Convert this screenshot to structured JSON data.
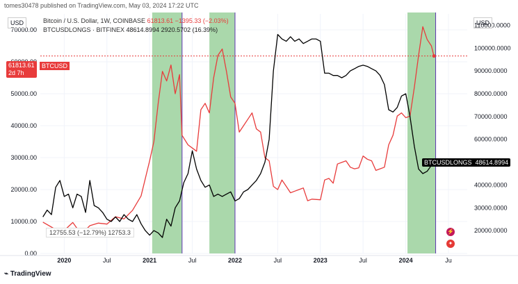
{
  "header": {
    "author_line": "tomes30478 published on TradingView.com, May 03, 2024 17:22 UTC"
  },
  "legend": {
    "btc": {
      "name": "Bitcoin / U.S. Dollar, 1W, COINBASE",
      "value": "61813.61",
      "change": "−1395.33 (−2.03%)"
    },
    "longs": {
      "name": "BTCUSDLONGS · BITFINEX",
      "value": "48614.8994",
      "change": "2920.5702 (16.39%)"
    }
  },
  "badges": {
    "price": "61813.61",
    "countdown": "2d 7h",
    "btc_tag": "BTCUSD",
    "longs_label": "BTCUSDLONGS",
    "longs_value": "48614.8994",
    "ohlc": "12755.53 (−12.79%) 12753.3",
    "currency_left": "USD",
    "currency_right": "USD"
  },
  "footer": {
    "brand": "TradingView"
  },
  "colors": {
    "btc": "#e83b3b",
    "longs": "#000000",
    "shade": "#a5d6a7"
  },
  "chart_data": {
    "type": "line",
    "x_unit": "year (fractional)",
    "x_ticks": [
      {
        "x": 2020.0,
        "label": "2020",
        "bold": true
      },
      {
        "x": 2020.5,
        "label": "Jul"
      },
      {
        "x": 2021.0,
        "label": "2021",
        "bold": true
      },
      {
        "x": 2021.5,
        "label": "Jul"
      },
      {
        "x": 2022.0,
        "label": "2022",
        "bold": true
      },
      {
        "x": 2022.5,
        "label": "Jul"
      },
      {
        "x": 2023.0,
        "label": "2023",
        "bold": true
      },
      {
        "x": 2023.5,
        "label": "Jul"
      },
      {
        "x": 2024.0,
        "label": "2024",
        "bold": true
      },
      {
        "x": 2024.5,
        "label": "Ju"
      }
    ],
    "left_axis": {
      "ylim": [
        0,
        75000
      ],
      "ticks": [
        0,
        10000,
        20000,
        30000,
        40000,
        50000,
        60000,
        70000
      ],
      "labels": [
        "0.00",
        "10000.00",
        "20000.00",
        "30000.00",
        "40000.00",
        "50000.00",
        "60000.00",
        "70000.00"
      ]
    },
    "right_axis": {
      "ylim": [
        10000,
        115000
      ],
      "ticks": [
        20000,
        30000,
        40000,
        50000,
        60000,
        70000,
        80000,
        90000,
        100000,
        110000
      ],
      "labels": [
        "20000.0000",
        "30000.0000",
        "40000.0000",
        "50000.0000",
        "60000.0000",
        "70000.0000",
        "80000.0000",
        "90000.0000",
        "100000.0000",
        "110000.0000"
      ]
    },
    "shaded_ranges": [
      [
        2021.03,
        2021.38
      ],
      [
        2021.7,
        2022.0
      ],
      [
        2024.02,
        2024.35
      ]
    ],
    "price_line_value": 61813.61,
    "series": [
      {
        "name": "Bitcoin / U.S. Dollar",
        "axis": "left",
        "color": "#e83b3b",
        "points": [
          [
            2019.75,
            9800
          ],
          [
            2019.9,
            7500
          ],
          [
            2020.0,
            7200
          ],
          [
            2020.1,
            9700
          ],
          [
            2020.2,
            6000
          ],
          [
            2020.3,
            8700
          ],
          [
            2020.4,
            9500
          ],
          [
            2020.5,
            9200
          ],
          [
            2020.6,
            11500
          ],
          [
            2020.7,
            10800
          ],
          [
            2020.8,
            13500
          ],
          [
            2020.9,
            18000
          ],
          [
            2021.0,
            29000
          ],
          [
            2021.05,
            35000
          ],
          [
            2021.1,
            47000
          ],
          [
            2021.15,
            57000
          ],
          [
            2021.2,
            54000
          ],
          [
            2021.25,
            59000
          ],
          [
            2021.3,
            50000
          ],
          [
            2021.35,
            56000
          ],
          [
            2021.38,
            37000
          ],
          [
            2021.45,
            34000
          ],
          [
            2021.5,
            33000
          ],
          [
            2021.55,
            32000
          ],
          [
            2021.6,
            45000
          ],
          [
            2021.65,
            47000
          ],
          [
            2021.7,
            44000
          ],
          [
            2021.75,
            55000
          ],
          [
            2021.8,
            62000
          ],
          [
            2021.85,
            64000
          ],
          [
            2021.9,
            57000
          ],
          [
            2021.95,
            49000
          ],
          [
            2022.0,
            47000
          ],
          [
            2022.05,
            38000
          ],
          [
            2022.1,
            40000
          ],
          [
            2022.15,
            42000
          ],
          [
            2022.2,
            44000
          ],
          [
            2022.25,
            39000
          ],
          [
            2022.3,
            38000
          ],
          [
            2022.35,
            30000
          ],
          [
            2022.4,
            29000
          ],
          [
            2022.45,
            21000
          ],
          [
            2022.5,
            20000
          ],
          [
            2022.55,
            23000
          ],
          [
            2022.6,
            21000
          ],
          [
            2022.65,
            19000
          ],
          [
            2022.7,
            19500
          ],
          [
            2022.75,
            20000
          ],
          [
            2022.8,
            20500
          ],
          [
            2022.85,
            16500
          ],
          [
            2022.9,
            17000
          ],
          [
            2023.0,
            16800
          ],
          [
            2023.05,
            23000
          ],
          [
            2023.1,
            23500
          ],
          [
            2023.15,
            22000
          ],
          [
            2023.2,
            28000
          ],
          [
            2023.25,
            28500
          ],
          [
            2023.3,
            29000
          ],
          [
            2023.35,
            27000
          ],
          [
            2023.4,
            26500
          ],
          [
            2023.45,
            26800
          ],
          [
            2023.5,
            30500
          ],
          [
            2023.55,
            29500
          ],
          [
            2023.6,
            29000
          ],
          [
            2023.65,
            26000
          ],
          [
            2023.7,
            26500
          ],
          [
            2023.75,
            27000
          ],
          [
            2023.8,
            34000
          ],
          [
            2023.85,
            37000
          ],
          [
            2023.9,
            43000
          ],
          [
            2023.95,
            44000
          ],
          [
            2024.0,
            42500
          ],
          [
            2024.05,
            43000
          ],
          [
            2024.1,
            52000
          ],
          [
            2024.15,
            62000
          ],
          [
            2024.2,
            71000
          ],
          [
            2024.25,
            67000
          ],
          [
            2024.3,
            65000
          ],
          [
            2024.33,
            61813
          ]
        ]
      },
      {
        "name": "BTCUSDLONGS",
        "axis": "right",
        "color": "#000000",
        "points": [
          [
            2019.75,
            26000
          ],
          [
            2019.8,
            29000
          ],
          [
            2019.85,
            27000
          ],
          [
            2019.9,
            39000
          ],
          [
            2019.95,
            42000
          ],
          [
            2020.0,
            35000
          ],
          [
            2020.05,
            36000
          ],
          [
            2020.1,
            30000
          ],
          [
            2020.15,
            36000
          ],
          [
            2020.2,
            35000
          ],
          [
            2020.25,
            28000
          ],
          [
            2020.3,
            42000
          ],
          [
            2020.35,
            31000
          ],
          [
            2020.4,
            30000
          ],
          [
            2020.45,
            28000
          ],
          [
            2020.5,
            25000
          ],
          [
            2020.55,
            24000
          ],
          [
            2020.6,
            26000
          ],
          [
            2020.65,
            24000
          ],
          [
            2020.7,
            27000
          ],
          [
            2020.75,
            25000
          ],
          [
            2020.8,
            24000
          ],
          [
            2020.85,
            27000
          ],
          [
            2020.9,
            23000
          ],
          [
            2020.95,
            20000
          ],
          [
            2021.0,
            18000
          ],
          [
            2021.05,
            20000
          ],
          [
            2021.1,
            19000
          ],
          [
            2021.15,
            17000
          ],
          [
            2021.2,
            25000
          ],
          [
            2021.25,
            22000
          ],
          [
            2021.3,
            30000
          ],
          [
            2021.35,
            33000
          ],
          [
            2021.4,
            41000
          ],
          [
            2021.45,
            45000
          ],
          [
            2021.5,
            55000
          ],
          [
            2021.55,
            47000
          ],
          [
            2021.6,
            42000
          ],
          [
            2021.65,
            39000
          ],
          [
            2021.7,
            40000
          ],
          [
            2021.75,
            35000
          ],
          [
            2021.8,
            36000
          ],
          [
            2021.85,
            35000
          ],
          [
            2021.9,
            36000
          ],
          [
            2021.95,
            37000
          ],
          [
            2022.0,
            33000
          ],
          [
            2022.05,
            34000
          ],
          [
            2022.1,
            37000
          ],
          [
            2022.15,
            38000
          ],
          [
            2022.2,
            40000
          ],
          [
            2022.25,
            42000
          ],
          [
            2022.3,
            45000
          ],
          [
            2022.35,
            50000
          ],
          [
            2022.4,
            60000
          ],
          [
            2022.45,
            90000
          ],
          [
            2022.5,
            106000
          ],
          [
            2022.55,
            104000
          ],
          [
            2022.6,
            103000
          ],
          [
            2022.65,
            105000
          ],
          [
            2022.7,
            103000
          ],
          [
            2022.75,
            104000
          ],
          [
            2022.8,
            102000
          ],
          [
            2022.85,
            103000
          ],
          [
            2022.9,
            104000
          ],
          [
            2022.95,
            104000
          ],
          [
            2023.0,
            103000
          ],
          [
            2023.05,
            89000
          ],
          [
            2023.1,
            89000
          ],
          [
            2023.15,
            88000
          ],
          [
            2023.2,
            88000
          ],
          [
            2023.25,
            87000
          ],
          [
            2023.3,
            88000
          ],
          [
            2023.35,
            90000
          ],
          [
            2023.4,
            91000
          ],
          [
            2023.45,
            92000
          ],
          [
            2023.5,
            92500
          ],
          [
            2023.55,
            92000
          ],
          [
            2023.6,
            91000
          ],
          [
            2023.65,
            90000
          ],
          [
            2023.7,
            88000
          ],
          [
            2023.75,
            84000
          ],
          [
            2023.8,
            73000
          ],
          [
            2023.85,
            72000
          ],
          [
            2023.9,
            74000
          ],
          [
            2023.95,
            79000
          ],
          [
            2024.0,
            80000
          ],
          [
            2024.05,
            70000
          ],
          [
            2024.1,
            57000
          ],
          [
            2024.15,
            47000
          ],
          [
            2024.2,
            45000
          ],
          [
            2024.25,
            46000
          ],
          [
            2024.3,
            48614
          ]
        ]
      }
    ]
  }
}
